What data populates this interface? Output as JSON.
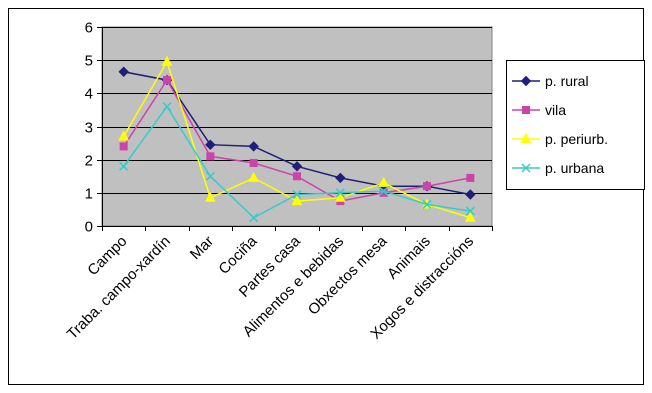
{
  "chart_data": {
    "type": "line",
    "categories": [
      "Campo",
      "Traba. campo-xardín",
      "Mar",
      "Cociña",
      "Partes casa",
      "Alimentos e bebidas",
      "Obxectos mesa",
      "Animais",
      "Xogos e distraccións"
    ],
    "ylim": [
      0,
      6
    ],
    "yticks": [
      0,
      1,
      2,
      3,
      4,
      5,
      6
    ],
    "grid": true,
    "legend_position": "right",
    "plot_background": "#c0c0c0",
    "series": [
      {
        "name": "p. rural",
        "color": "#1f1f7a",
        "marker": "diamond",
        "values": [
          4.65,
          4.4,
          2.45,
          2.4,
          1.8,
          1.45,
          1.2,
          1.2,
          0.95
        ]
      },
      {
        "name": "vila",
        "color": "#cc44aa",
        "marker": "square",
        "values": [
          2.4,
          4.4,
          2.1,
          1.9,
          1.5,
          0.75,
          1.0,
          1.2,
          1.45
        ]
      },
      {
        "name": "p. periurb.",
        "color": "#ffff00",
        "marker": "triangle",
        "values": [
          2.7,
          4.95,
          0.85,
          1.45,
          0.75,
          0.85,
          1.3,
          0.65,
          0.25
        ]
      },
      {
        "name": "p. urbana",
        "color": "#33cccc",
        "marker": "x",
        "values": [
          1.8,
          3.6,
          1.5,
          0.25,
          0.95,
          1.0,
          1.05,
          0.65,
          0.45
        ]
      }
    ]
  }
}
